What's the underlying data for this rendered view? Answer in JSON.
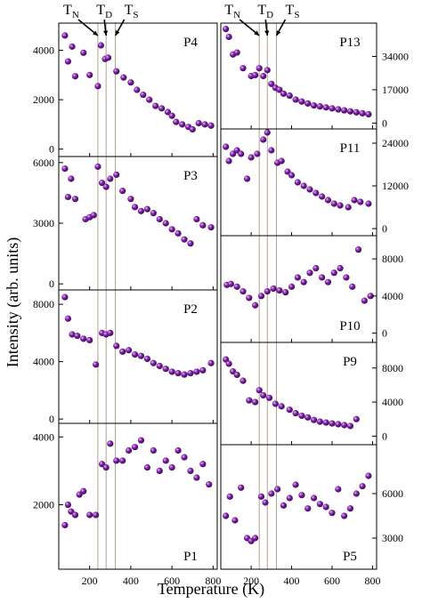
{
  "figure": {
    "ylabel": "Intensity (arb. units)",
    "xlabel": "Temperature (K)",
    "markers": [
      {
        "main": "T",
        "sub": "N",
        "x": 240
      },
      {
        "main": "T",
        "sub": "D",
        "x": 280
      },
      {
        "main": "T",
        "sub": "S",
        "x": 325
      }
    ],
    "marker_color": "#b0a38e",
    "point_color": "#7b1fa2",
    "xlim": [
      50,
      820
    ],
    "xticks": [
      200,
      400,
      600,
      800
    ]
  },
  "chart_data": [
    {
      "type": "scatter",
      "label": "P4",
      "column": "left",
      "yaxis_side": "left",
      "ylim": [
        -300,
        5100
      ],
      "yticks": [
        0,
        2000,
        4000
      ],
      "x": [
        80,
        95,
        115,
        130,
        170,
        200,
        240,
        255,
        275,
        290,
        330,
        365,
        400,
        430,
        460,
        490,
        520,
        550,
        580,
        600,
        620,
        650,
        680,
        700,
        730,
        760,
        790
      ],
      "y": [
        4600,
        3550,
        4150,
        2950,
        3900,
        3000,
        2550,
        4200,
        3650,
        3700,
        3150,
        2900,
        2700,
        2400,
        2200,
        2000,
        1750,
        1650,
        1500,
        1350,
        1100,
        1000,
        900,
        800,
        1050,
        1000,
        950
      ]
    },
    {
      "type": "scatter",
      "label": "P3",
      "column": "left",
      "yaxis_side": "left",
      "ylim": [
        -300,
        6300
      ],
      "yticks": [
        0,
        3000,
        6000
      ],
      "x": [
        80,
        95,
        110,
        130,
        180,
        200,
        220,
        240,
        260,
        280,
        300,
        330,
        360,
        400,
        420,
        450,
        480,
        510,
        540,
        570,
        600,
        630,
        660,
        690,
        720,
        750,
        790
      ],
      "y": [
        5700,
        4300,
        5200,
        4200,
        3200,
        3300,
        3400,
        5800,
        5000,
        4800,
        5200,
        5400,
        4600,
        4200,
        3800,
        3600,
        3700,
        3500,
        3200,
        3000,
        2700,
        2500,
        2200,
        2000,
        3200,
        2900,
        2800
      ]
    },
    {
      "type": "scatter",
      "label": "P2",
      "column": "left",
      "yaxis_side": "left",
      "ylim": [
        -300,
        9000
      ],
      "yticks": [
        0,
        4000,
        8000
      ],
      "x": [
        80,
        95,
        115,
        140,
        170,
        200,
        230,
        260,
        280,
        300,
        330,
        360,
        390,
        420,
        450,
        480,
        510,
        540,
        570,
        600,
        630,
        660,
        690,
        720,
        750,
        790
      ],
      "y": [
        8500,
        7000,
        5900,
        5800,
        5600,
        5500,
        3800,
        6000,
        5900,
        6000,
        5100,
        4700,
        4800,
        4500,
        4400,
        4200,
        3900,
        3700,
        3500,
        3300,
        3200,
        3100,
        3200,
        3300,
        3400,
        3900
      ]
    },
    {
      "type": "scatter",
      "label": "P1",
      "column": "left",
      "yaxis_side": "left",
      "ylim": [
        100,
        4400
      ],
      "yticks": [
        2000,
        4000
      ],
      "x": [
        80,
        95,
        110,
        130,
        150,
        170,
        200,
        230,
        260,
        280,
        300,
        330,
        360,
        390,
        420,
        450,
        480,
        510,
        540,
        570,
        600,
        630,
        660,
        690,
        720,
        750,
        780
      ],
      "y": [
        1400,
        2000,
        1800,
        1700,
        2300,
        2400,
        1700,
        1700,
        3200,
        3100,
        3800,
        3300,
        3300,
        3600,
        3700,
        3900,
        3100,
        3600,
        3000,
        3300,
        3100,
        3600,
        3400,
        3000,
        2800,
        3200,
        2600
      ]
    },
    {
      "type": "scatter",
      "label": "P13",
      "column": "right",
      "yaxis_side": "right",
      "ylim": [
        -3000,
        51000
      ],
      "yticks": [
        0,
        17000,
        34000
      ],
      "x": [
        75,
        90,
        110,
        130,
        160,
        200,
        220,
        240,
        260,
        280,
        300,
        320,
        340,
        360,
        390,
        420,
        450,
        480,
        510,
        540,
        570,
        600,
        630,
        660,
        690,
        720,
        750,
        780
      ],
      "y": [
        48000,
        44000,
        35000,
        36000,
        28000,
        24000,
        24500,
        28000,
        24000,
        27000,
        20000,
        18000,
        17000,
        15000,
        14000,
        12000,
        11000,
        10000,
        9000,
        8500,
        8000,
        7500,
        7000,
        6500,
        6000,
        5500,
        5000,
        4500
      ]
    },
    {
      "type": "scatter",
      "label": "P11",
      "column": "right",
      "yaxis_side": "right",
      "ylim": [
        -2000,
        28000
      ],
      "yticks": [
        0,
        12000,
        24000
      ],
      "x": [
        75,
        90,
        110,
        130,
        150,
        180,
        200,
        230,
        260,
        280,
        300,
        330,
        350,
        380,
        400,
        430,
        460,
        490,
        520,
        550,
        580,
        610,
        640,
        680,
        710,
        740,
        780
      ],
      "y": [
        23000,
        19000,
        21000,
        22000,
        21000,
        14000,
        20000,
        21000,
        25000,
        27000,
        22000,
        18500,
        19000,
        16000,
        15000,
        13000,
        12000,
        11000,
        10000,
        9000,
        8000,
        7000,
        6500,
        6000,
        8000,
        7500,
        7000
      ]
    },
    {
      "type": "scatter",
      "label": "P10",
      "column": "right",
      "yaxis_side": "right",
      "ylim": [
        -1000,
        10500
      ],
      "yticks": [
        0,
        4000,
        8000
      ],
      "x": [
        80,
        100,
        130,
        160,
        190,
        220,
        250,
        280,
        310,
        340,
        370,
        400,
        430,
        460,
        490,
        520,
        550,
        580,
        610,
        640,
        670,
        700,
        730,
        760,
        790
      ],
      "y": [
        5200,
        5300,
        5000,
        4500,
        3800,
        3000,
        4000,
        4500,
        4800,
        4600,
        4400,
        5000,
        6000,
        5500,
        6500,
        7000,
        6000,
        5500,
        6500,
        7000,
        6000,
        5000,
        9000,
        3500,
        4000
      ]
    },
    {
      "type": "scatter",
      "label": "P9",
      "column": "right",
      "yaxis_side": "right",
      "ylim": [
        -1000,
        11000
      ],
      "yticks": [
        0,
        4000,
        8000
      ],
      "x": [
        75,
        90,
        110,
        130,
        160,
        190,
        220,
        240,
        260,
        290,
        320,
        350,
        390,
        420,
        450,
        480,
        510,
        540,
        570,
        600,
        630,
        660,
        690,
        720
      ],
      "y": [
        9000,
        8500,
        7600,
        7200,
        6500,
        4200,
        4000,
        5400,
        4800,
        4500,
        3800,
        3500,
        3100,
        2700,
        2400,
        2200,
        1900,
        1700,
        1600,
        1500,
        1400,
        1300,
        1200,
        2000
      ]
    },
    {
      "type": "scatter",
      "label": "P5",
      "column": "right",
      "yaxis_side": "right",
      "ylim": [
        900,
        9300
      ],
      "yticks": [
        3000,
        6000
      ],
      "x": [
        75,
        95,
        120,
        150,
        180,
        200,
        220,
        250,
        270,
        300,
        330,
        360,
        390,
        420,
        450,
        480,
        510,
        540,
        570,
        600,
        630,
        660,
        690,
        720,
        750,
        780
      ],
      "y": [
        4500,
        5800,
        4200,
        6400,
        3000,
        2800,
        3000,
        5800,
        5400,
        6000,
        6300,
        5200,
        5700,
        6600,
        5900,
        5000,
        5700,
        5300,
        5100,
        4700,
        6300,
        4500,
        5000,
        6000,
        6500,
        7200
      ]
    }
  ]
}
